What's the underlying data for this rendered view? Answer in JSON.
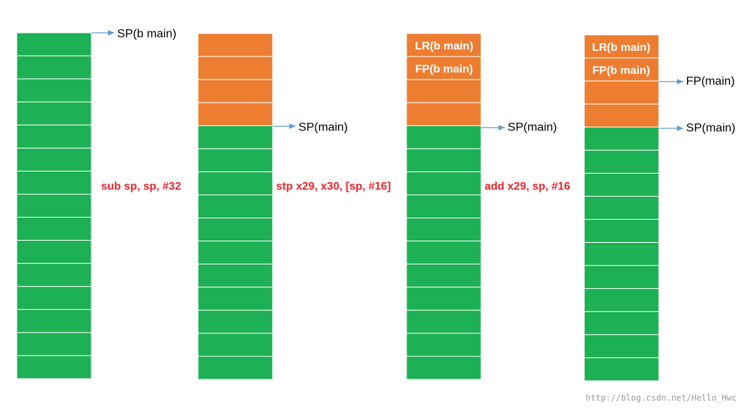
{
  "columns": [
    {
      "cells": [],
      "pointers": [
        "SP(b main)"
      ]
    },
    {
      "cells": [],
      "pointers": [
        "SP(main)"
      ]
    },
    {
      "cells": [
        "LR(b main)",
        "FP(b main)"
      ],
      "pointers": [
        "SP(main)"
      ]
    },
    {
      "cells": [
        "LR(b main)",
        "FP(b main)"
      ],
      "pointers": [
        "FP(main)",
        "SP(main)"
      ]
    }
  ],
  "instructions": [
    "sub sp, sp, #32",
    "stp x29, x30, [sp, #16]",
    "add x29, sp, #16"
  ],
  "watermark": "http://blog.csdn.net/Hello_Hwc"
}
